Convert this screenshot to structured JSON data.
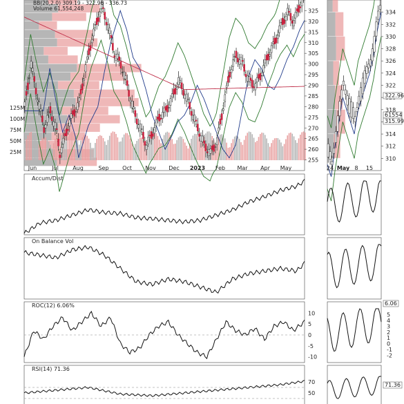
{
  "legend": {
    "bb": "BB(20,2.0) 309.19 - 322.96 - 336.73",
    "volume": "Volume 61,554,248"
  },
  "panels": {
    "accum": {
      "title": "Accum/Dist"
    },
    "obv": {
      "title": "On Balance Vol"
    },
    "roc": {
      "title": "ROC(12) 6.06%",
      "badge": "6.06"
    },
    "rsi": {
      "title": "RSI(14) 71.36",
      "badge": "71.36"
    }
  },
  "price_badges": {
    "bb_mid": "322.96",
    "bb_low_a": "61554",
    "bb_low_b": "315.99"
  },
  "chart_data": [
    {
      "type": "candlestick",
      "title": "",
      "x_labels": [
        "Jun",
        "Jul",
        "Aug",
        "Sep",
        "Oct",
        "Nov",
        "Dec",
        "2023",
        "Feb",
        "Mar",
        "Apr",
        "May"
      ],
      "y_ticks": [
        255,
        260,
        265,
        270,
        275,
        280,
        285,
        290,
        295,
        300,
        305,
        310,
        315,
        320,
        325
      ],
      "volume_ticks": [
        "125M",
        "100M",
        "75M",
        "50M",
        "25M"
      ],
      "price_path": [
        [
          0,
          280
        ],
        [
          4,
          300
        ],
        [
          8,
          284
        ],
        [
          12,
          270
        ],
        [
          16,
          278
        ],
        [
          20,
          268
        ],
        [
          22,
          258
        ],
        [
          28,
          273
        ],
        [
          34,
          282
        ],
        [
          38,
          298
        ],
        [
          42,
          312
        ],
        [
          46,
          322
        ],
        [
          48,
          327
        ],
        [
          52,
          318
        ],
        [
          56,
          305
        ],
        [
          60,
          300
        ],
        [
          64,
          290
        ],
        [
          68,
          278
        ],
        [
          72,
          270
        ],
        [
          76,
          262
        ],
        [
          80,
          268
        ],
        [
          84,
          275
        ],
        [
          88,
          278
        ],
        [
          92,
          284
        ],
        [
          96,
          292
        ],
        [
          100,
          286
        ],
        [
          104,
          278
        ],
        [
          108,
          270
        ],
        [
          112,
          262
        ],
        [
          116,
          258
        ],
        [
          120,
          264
        ],
        [
          124,
          280
        ],
        [
          128,
          296
        ],
        [
          132,
          304
        ],
        [
          136,
          300
        ],
        [
          140,
          292
        ],
        [
          144,
          290
        ],
        [
          148,
          296
        ],
        [
          152,
          304
        ],
        [
          156,
          310
        ],
        [
          160,
          318
        ],
        [
          164,
          324
        ],
        [
          168,
          320
        ],
        [
          172,
          328
        ],
        [
          175,
          332
        ]
      ],
      "series": [
        {
          "name": "BB(20,2.0)",
          "color": "#3a8a3a"
        },
        {
          "name": "Volume",
          "color": "#e8a0a0"
        }
      ]
    },
    {
      "type": "candlestick",
      "title": "",
      "x_labels": [
        "24",
        "May",
        "8",
        "15"
      ],
      "y_ticks": [
        310,
        312,
        314,
        316,
        318,
        320,
        322,
        324,
        326,
        328,
        330,
        332,
        334
      ],
      "price_path": [
        [
          0,
          311
        ],
        [
          2,
          309
        ],
        [
          4,
          314
        ],
        [
          6,
          318
        ],
        [
          8,
          322
        ],
        [
          10,
          320
        ],
        [
          12,
          318
        ],
        [
          14,
          316
        ],
        [
          16,
          320
        ],
        [
          18,
          322
        ],
        [
          20,
          324
        ],
        [
          22,
          326
        ],
        [
          24,
          329
        ],
        [
          26,
          333
        ],
        [
          28,
          336
        ]
      ],
      "series": [
        {
          "name": "Price",
          "color": "#222222"
        }
      ]
    },
    {
      "type": "line",
      "title": "Accum/Dist",
      "x": [
        0,
        10,
        20,
        30,
        40,
        50,
        60,
        70,
        80,
        90,
        100,
        110,
        120,
        130,
        140,
        150,
        160,
        170,
        175
      ],
      "values": [
        0.0,
        0.2,
        0.25,
        0.35,
        0.45,
        0.4,
        0.38,
        0.3,
        0.28,
        0.25,
        0.22,
        0.25,
        0.35,
        0.45,
        0.6,
        0.7,
        0.82,
        0.9,
        1.0
      ],
      "series": [
        {
          "name": "Accum/Dist",
          "color": "#111111"
        }
      ]
    },
    {
      "type": "line",
      "title": "On Balance Vol",
      "x": [
        0,
        10,
        20,
        30,
        40,
        50,
        60,
        70,
        80,
        90,
        100,
        110,
        120,
        130,
        140,
        150,
        160,
        170,
        175
      ],
      "values": [
        0.85,
        0.8,
        0.75,
        0.9,
        0.95,
        0.8,
        0.55,
        0.3,
        0.25,
        0.35,
        0.3,
        0.2,
        0.1,
        0.35,
        0.45,
        0.5,
        0.55,
        0.5,
        0.65
      ],
      "series": [
        {
          "name": "On Balance Vol",
          "color": "#111111"
        }
      ]
    },
    {
      "type": "line",
      "title": "ROC(12) 6.06%",
      "x": [
        0,
        6,
        12,
        18,
        24,
        30,
        36,
        42,
        48,
        54,
        60,
        66,
        72,
        78,
        84,
        90,
        96,
        102,
        108,
        114,
        120,
        126,
        132,
        138,
        144,
        150,
        156,
        162,
        168,
        175
      ],
      "values": [
        -10,
        2,
        -2,
        4,
        8,
        2,
        6,
        10,
        4,
        8,
        -4,
        -8,
        -6,
        0,
        4,
        6,
        0,
        -4,
        -8,
        -10,
        -2,
        6,
        2,
        0,
        3,
        -2,
        4,
        6,
        2,
        6.06
      ],
      "y_ticks": [
        10,
        5,
        0,
        -5,
        -10
      ],
      "series": [
        {
          "name": "ROC(12)",
          "color": "#111111"
        }
      ]
    },
    {
      "type": "line",
      "title": "RSI(14) 71.36",
      "x": [
        0,
        20,
        40,
        60,
        80,
        100,
        120,
        140,
        160,
        175
      ],
      "values": [
        50,
        55,
        60,
        48,
        45,
        50,
        55,
        60,
        65,
        71.36
      ],
      "y_ticks": [
        70,
        50
      ],
      "series": [
        {
          "name": "RSI(14)",
          "color": "#111111"
        }
      ]
    }
  ]
}
